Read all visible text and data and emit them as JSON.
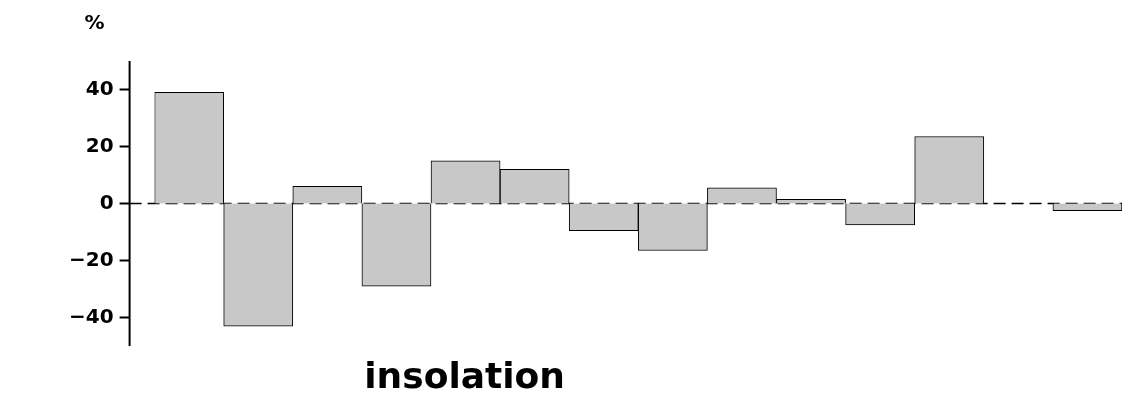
{
  "chart_data": {
    "type": "bar",
    "ylabel": "%",
    "xlabel": "insolation",
    "categories": [
      null,
      null,
      null,
      null,
      null,
      null,
      null,
      null,
      null,
      null,
      null,
      null,
      null,
      null
    ],
    "values": [
      39,
      -43,
      6,
      -29,
      15,
      12,
      -9.5,
      -16.5,
      5.5,
      1.5,
      -7.5,
      23.5,
      null,
      -2.5
    ],
    "color": "#c8c8c8",
    "ylim": [
      -50,
      50
    ],
    "yticks": [
      -40,
      -20,
      0,
      20,
      40
    ],
    "grid": false,
    "legend": false,
    "ref_lines": [
      {
        "axis": "y",
        "value": 0,
        "line_style": "dashed",
        "color": "#000000"
      }
    ]
  }
}
